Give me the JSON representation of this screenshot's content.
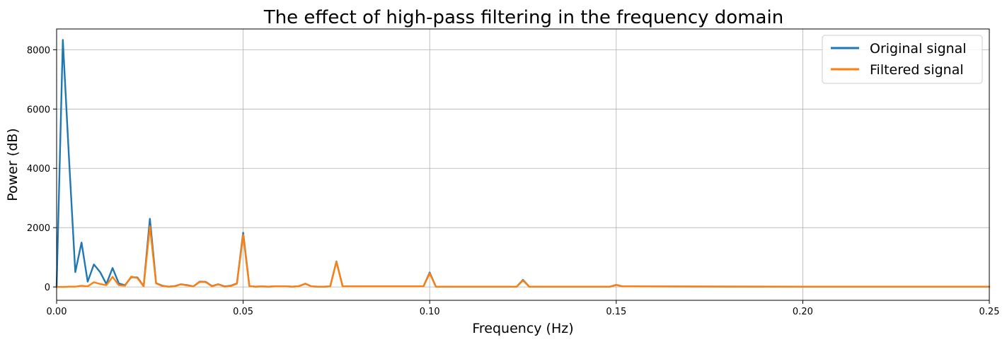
{
  "chart_data": {
    "type": "line",
    "title": "The effect of high-pass filtering in the frequency domain",
    "xlabel": "Frequency (Hz)",
    "ylabel": "Power (dB)",
    "xlim": [
      0,
      0.25
    ],
    "ylim": [
      -450,
      8700
    ],
    "xticks": [
      "0.00",
      "0.05",
      "0.10",
      "0.15",
      "0.20",
      "0.25"
    ],
    "xtick_values": [
      0,
      0.05,
      0.1,
      0.15,
      0.2,
      0.25
    ],
    "yticks": [
      "0",
      "2000",
      "4000",
      "6000",
      "8000"
    ],
    "ytick_values": [
      0,
      2000,
      4000,
      6000,
      8000
    ],
    "grid": true,
    "legend_position": "top-right",
    "series": [
      {
        "name": "Original signal",
        "color": "#1f77b4",
        "x": [
          0,
          0.00167,
          0.00333,
          0.005,
          0.00667,
          0.00833,
          0.01,
          0.01167,
          0.01333,
          0.015,
          0.01667,
          0.01833,
          0.02,
          0.02167,
          0.02333,
          0.025,
          0.02667,
          0.02833,
          0.03,
          0.03167,
          0.03333,
          0.035,
          0.03667,
          0.03833,
          0.04,
          0.04167,
          0.04333,
          0.045,
          0.04667,
          0.04833,
          0.05,
          0.05167,
          0.05333,
          0.055,
          0.05667,
          0.05833,
          0.06,
          0.06167,
          0.06333,
          0.065,
          0.06667,
          0.06833,
          0.07,
          0.07167,
          0.07333,
          0.075,
          0.07667,
          0.07833,
          0.08,
          0.09833,
          0.1,
          0.10167,
          0.12333,
          0.125,
          0.12667,
          0.14833,
          0.15,
          0.15167,
          0.2,
          0.25
        ],
        "y": [
          0,
          8330,
          4300,
          500,
          1500,
          180,
          760,
          500,
          100,
          640,
          120,
          60,
          330,
          320,
          30,
          2300,
          130,
          40,
          10,
          30,
          90,
          60,
          20,
          180,
          170,
          30,
          90,
          20,
          40,
          120,
          1830,
          30,
          10,
          20,
          10,
          20,
          20,
          20,
          10,
          30,
          110,
          20,
          10,
          10,
          20,
          860,
          20,
          20,
          20,
          20,
          490,
          10,
          10,
          240,
          10,
          10,
          70,
          20,
          10,
          10
        ]
      },
      {
        "name": "Filtered signal",
        "color": "#ff7f0e",
        "x": [
          0,
          0.00167,
          0.00333,
          0.005,
          0.00667,
          0.00833,
          0.01,
          0.01167,
          0.01333,
          0.015,
          0.01667,
          0.01833,
          0.02,
          0.02167,
          0.02333,
          0.025,
          0.02667,
          0.02833,
          0.03,
          0.03167,
          0.03333,
          0.035,
          0.03667,
          0.03833,
          0.04,
          0.04167,
          0.04333,
          0.045,
          0.04667,
          0.04833,
          0.05,
          0.05167,
          0.05333,
          0.055,
          0.05667,
          0.05833,
          0.06,
          0.06167,
          0.06333,
          0.065,
          0.06667,
          0.06833,
          0.07,
          0.07167,
          0.07333,
          0.075,
          0.07667,
          0.07833,
          0.08,
          0.09833,
          0.1,
          0.10167,
          0.12333,
          0.125,
          0.12667,
          0.14833,
          0.15,
          0.15167,
          0.2,
          0.25
        ],
        "y": [
          0,
          0,
          10,
          10,
          40,
          20,
          160,
          100,
          60,
          340,
          60,
          40,
          350,
          300,
          20,
          2050,
          120,
          30,
          10,
          20,
          90,
          50,
          20,
          170,
          160,
          20,
          90,
          10,
          30,
          110,
          1760,
          30,
          10,
          20,
          10,
          20,
          20,
          20,
          10,
          30,
          110,
          20,
          10,
          10,
          20,
          850,
          20,
          20,
          20,
          20,
          460,
          10,
          10,
          220,
          10,
          10,
          70,
          20,
          10,
          10
        ]
      }
    ]
  }
}
